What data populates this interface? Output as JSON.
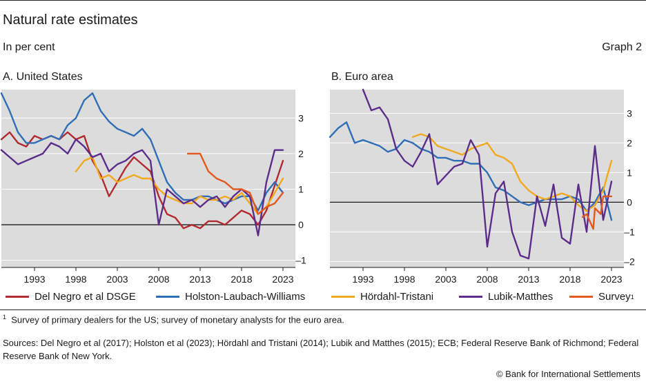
{
  "header": {
    "title": "Natural rate estimates",
    "unit": "In per cent",
    "graph_no": "Graph 2"
  },
  "panels": {
    "us_title": "A. United States",
    "ea_title": "B. Euro area"
  },
  "legend": [
    {
      "name": "Del Negro et al DSGE",
      "color": "#b02a30"
    },
    {
      "name": "Holston-Laubach-Williams",
      "color": "#2f6eb5"
    },
    {
      "name": "Hördahl-Tristani",
      "color": "#f2a81d"
    },
    {
      "name": "Lubik-Matthes",
      "color": "#5b2c8a"
    },
    {
      "name": "Survey",
      "color": "#e2591b",
      "sup": "1"
    }
  ],
  "footnote": {
    "mark": "1",
    "text": "Survey of primary dealers for the US; survey of monetary analysts for the euro area."
  },
  "sources": "Sources: Del Negro et al (2017); Holston et al (2023); Hördahl and Tristani (2014); Lubik and Matthes (2015); ECB; Federal Reserve Bank of Richmond; Federal Reserve Bank of New York.",
  "copyright": "© Bank for International Settlements",
  "chart_data": [
    {
      "type": "line",
      "title": "A. United States",
      "xlabel": "",
      "ylabel": "",
      "xlim": [
        1989,
        2024.5
      ],
      "ylim": [
        -1.2,
        3.8
      ],
      "yticks": [
        -1,
        0,
        1,
        2,
        3
      ],
      "xticks": [
        1993,
        1998,
        2003,
        2008,
        2013,
        2018,
        2023
      ],
      "grid": true,
      "series": [
        {
          "name": "Del Negro et al DSGE",
          "color": "#b02a30",
          "x": [
            1989,
            1990,
            1991,
            1992,
            1993,
            1994,
            1995,
            1996,
            1997,
            1998,
            1999,
            2000,
            2001,
            2002,
            2003,
            2004,
            2005,
            2006,
            2007,
            2008,
            2009,
            2010,
            2011,
            2012,
            2013,
            2014,
            2015,
            2016,
            2017,
            2018,
            2019,
            2020,
            2021,
            2022,
            2023
          ],
          "y": [
            2.4,
            2.6,
            2.3,
            2.2,
            2.5,
            2.4,
            2.5,
            2.4,
            2.6,
            2.4,
            2.5,
            1.8,
            1.4,
            0.8,
            1.2,
            1.6,
            1.9,
            1.7,
            1.5,
            0.8,
            0.3,
            0.2,
            -0.1,
            0.0,
            -0.1,
            0.1,
            0.1,
            0.0,
            0.2,
            0.4,
            0.3,
            0.0,
            0.4,
            1.1,
            1.8
          ]
        },
        {
          "name": "Holston-Laubach-Williams",
          "color": "#2f6eb5",
          "x": [
            1989,
            1990,
            1991,
            1992,
            1993,
            1994,
            1995,
            1996,
            1997,
            1998,
            1999,
            2000,
            2001,
            2002,
            2003,
            2004,
            2005,
            2006,
            2007,
            2008,
            2009,
            2010,
            2011,
            2012,
            2013,
            2014,
            2015,
            2016,
            2017,
            2018,
            2019,
            2020,
            2021,
            2022,
            2023
          ],
          "y": [
            3.7,
            3.2,
            2.6,
            2.3,
            2.3,
            2.4,
            2.5,
            2.4,
            2.8,
            3.0,
            3.5,
            3.7,
            3.2,
            2.9,
            2.7,
            2.6,
            2.5,
            2.7,
            2.4,
            1.8,
            1.2,
            0.9,
            0.7,
            0.7,
            0.8,
            0.8,
            0.7,
            0.6,
            0.7,
            0.8,
            0.8,
            0.4,
            0.9,
            1.2,
            0.9
          ]
        },
        {
          "name": "Hördahl-Tristani",
          "color": "#f2a81d",
          "x": [
            1998,
            1999,
            2000,
            2001,
            2002,
            2003,
            2004,
            2005,
            2006,
            2007,
            2008,
            2009,
            2010,
            2011,
            2012,
            2013,
            2014,
            2015,
            2016,
            2017,
            2018,
            2019,
            2020,
            2021,
            2022,
            2023
          ],
          "y": [
            1.5,
            1.8,
            1.9,
            1.3,
            1.4,
            1.2,
            1.3,
            1.4,
            1.3,
            1.3,
            1.0,
            0.8,
            0.7,
            0.6,
            0.6,
            0.8,
            0.7,
            0.7,
            0.8,
            0.7,
            0.9,
            0.6,
            0.3,
            0.5,
            0.9,
            1.3
          ]
        },
        {
          "name": "Lubik-Matthes",
          "color": "#5b2c8a",
          "x": [
            1989,
            1990,
            1991,
            1992,
            1993,
            1994,
            1995,
            1996,
            1997,
            1998,
            1999,
            2000,
            2001,
            2002,
            2003,
            2004,
            2005,
            2006,
            2007,
            2008,
            2009,
            2010,
            2011,
            2012,
            2013,
            2014,
            2015,
            2016,
            2017,
            2018,
            2019,
            2020,
            2021,
            2022,
            2023
          ],
          "y": [
            2.1,
            1.9,
            1.7,
            1.8,
            1.9,
            2.0,
            2.3,
            2.2,
            2.0,
            2.4,
            2.2,
            1.9,
            2.0,
            1.5,
            1.7,
            1.8,
            2.0,
            2.1,
            1.8,
            0.0,
            1.0,
            0.8,
            0.6,
            0.7,
            0.5,
            0.7,
            0.8,
            0.5,
            0.8,
            1.0,
            0.8,
            -0.3,
            1.2,
            2.1,
            2.1
          ]
        },
        {
          "name": "Survey",
          "color": "#e2591b",
          "x": [
            2011.5,
            2013,
            2014,
            2015,
            2016,
            2017,
            2018,
            2019,
            2020,
            2021,
            2022,
            2023
          ],
          "y": [
            2.0,
            2.0,
            1.5,
            1.3,
            1.2,
            1.0,
            1.0,
            0.9,
            0.3,
            0.5,
            0.6,
            0.9
          ]
        }
      ]
    },
    {
      "type": "line",
      "title": "B. Euro area",
      "xlabel": "",
      "ylabel": "",
      "xlim": [
        1989,
        2024.5
      ],
      "ylim": [
        -2.2,
        3.8
      ],
      "yticks": [
        -2,
        -1,
        0,
        1,
        2,
        3
      ],
      "xticks": [
        1993,
        1998,
        2003,
        2008,
        2013,
        2018,
        2023
      ],
      "grid": true,
      "series": [
        {
          "name": "Holston-Laubach-Williams",
          "color": "#2f6eb5",
          "x": [
            1989,
            1990,
            1991,
            1992,
            1993,
            1994,
            1995,
            1996,
            1997,
            1998,
            1999,
            2000,
            2001,
            2002,
            2003,
            2004,
            2005,
            2006,
            2007,
            2008,
            2009,
            2010,
            2011,
            2012,
            2013,
            2014,
            2015,
            2016,
            2017,
            2018,
            2019,
            2020,
            2021,
            2022,
            2023
          ],
          "y": [
            2.2,
            2.5,
            2.7,
            2.0,
            2.1,
            2.0,
            1.9,
            1.7,
            1.8,
            2.1,
            2.0,
            1.8,
            1.7,
            1.5,
            1.5,
            1.4,
            1.4,
            1.3,
            1.3,
            1.0,
            0.5,
            0.4,
            0.2,
            0.0,
            -0.1,
            0.0,
            0.1,
            0.1,
            0.1,
            0.2,
            0.1,
            -0.3,
            0.0,
            0.5,
            -0.6
          ]
        },
        {
          "name": "Hördahl-Tristani",
          "color": "#f2a81d",
          "x": [
            1999,
            2000,
            2001,
            2002,
            2003,
            2004,
            2005,
            2006,
            2007,
            2008,
            2009,
            2010,
            2011,
            2012,
            2013,
            2014,
            2015,
            2016,
            2017,
            2018,
            2019,
            2020,
            2021,
            2022,
            2023
          ],
          "y": [
            2.2,
            2.3,
            2.2,
            1.9,
            1.8,
            1.7,
            1.6,
            1.8,
            1.9,
            2.0,
            1.6,
            1.5,
            1.3,
            0.7,
            0.4,
            0.2,
            0.1,
            0.2,
            0.3,
            0.2,
            -0.1,
            -0.3,
            -0.1,
            0.4,
            1.4
          ]
        },
        {
          "name": "Lubik-Matthes",
          "color": "#5b2c8a",
          "x": [
            1993,
            1994,
            1995,
            1996,
            1997,
            1998,
            1999,
            2000,
            2001,
            2002,
            2003,
            2004,
            2005,
            2006,
            2007,
            2008,
            2009,
            2010,
            2011,
            2012,
            2013,
            2014,
            2015,
            2016,
            2017,
            2018,
            2019,
            2020,
            2021,
            2022,
            2023
          ],
          "y": [
            3.8,
            3.1,
            3.2,
            2.8,
            1.8,
            1.4,
            1.2,
            1.7,
            2.3,
            0.6,
            0.9,
            1.2,
            1.3,
            2.1,
            1.6,
            -1.5,
            0.3,
            0.7,
            -1.0,
            -1.8,
            -1.9,
            0.2,
            -0.8,
            0.6,
            -1.2,
            -1.4,
            0.6,
            -1.0,
            1.9,
            -0.6,
            0.7
          ]
        },
        {
          "name": "Survey",
          "color": "#e2591b",
          "x": [
            2019.5,
            2020,
            2020.8,
            2021,
            2021.7,
            2022,
            2023
          ],
          "y": [
            -0.5,
            -0.4,
            -0.9,
            -0.2,
            -0.4,
            0.2,
            0.2
          ]
        }
      ]
    }
  ]
}
